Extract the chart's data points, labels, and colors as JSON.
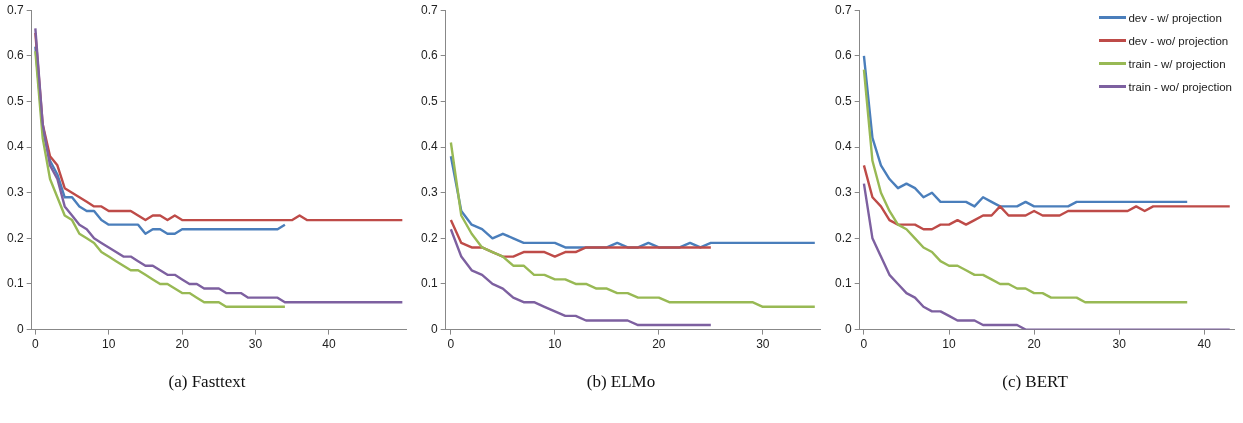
{
  "chart_data": [
    {
      "type": "line",
      "title": "(a) Fasttext",
      "x": [
        0,
        1,
        2,
        3,
        4,
        5,
        6,
        7,
        8,
        9,
        10,
        11,
        12,
        13,
        14,
        15,
        16,
        17,
        18,
        19,
        20,
        21,
        22,
        23,
        24,
        25,
        26,
        27,
        28,
        29,
        30,
        31,
        32,
        33,
        34,
        35,
        36,
        37,
        38,
        39,
        40,
        41,
        42,
        43,
        44,
        45,
        46,
        47,
        48,
        49,
        50
      ],
      "xlim": [
        -0.5,
        50.5
      ],
      "xticks": [
        0,
        10,
        20,
        30,
        40
      ],
      "ylim": [
        0,
        0.7
      ],
      "yticks": [
        0,
        0.1,
        0.2,
        0.3,
        0.4,
        0.5,
        0.6,
        0.7
      ],
      "grid": false,
      "legend": false,
      "series": [
        {
          "color": "#4a7ebb",
          "values": [
            0.62,
            0.44,
            0.37,
            0.34,
            0.29,
            0.29,
            0.27,
            0.26,
            0.26,
            0.24,
            0.23,
            0.23,
            0.23,
            0.23,
            0.23,
            0.21,
            0.22,
            0.22,
            0.21,
            0.21,
            0.22,
            0.22,
            0.22,
            0.22,
            0.22,
            0.22,
            0.22,
            0.22,
            0.22,
            0.22,
            0.22,
            0.22,
            0.22,
            0.22,
            0.23,
            null,
            null,
            null,
            null,
            null,
            null,
            null,
            null,
            null,
            null,
            null,
            null,
            null,
            null,
            null,
            null
          ]
        },
        {
          "color": "#be4b48",
          "values": [
            0.65,
            0.45,
            0.38,
            0.36,
            0.31,
            0.3,
            0.29,
            0.28,
            0.27,
            0.27,
            0.26,
            0.26,
            0.26,
            0.26,
            0.25,
            0.24,
            0.25,
            0.25,
            0.24,
            0.25,
            0.24,
            0.24,
            0.24,
            0.24,
            0.24,
            0.24,
            0.24,
            0.24,
            0.24,
            0.24,
            0.24,
            0.24,
            0.24,
            0.24,
            0.24,
            0.24,
            0.25,
            0.24,
            0.24,
            0.24,
            0.24,
            0.24,
            0.24,
            0.24,
            0.24,
            0.24,
            0.24,
            0.24,
            0.24,
            0.24,
            0.24
          ]
        },
        {
          "color": "#98b954",
          "values": [
            0.61,
            0.42,
            0.33,
            0.29,
            0.25,
            0.24,
            0.21,
            0.2,
            0.19,
            0.17,
            0.16,
            0.15,
            0.14,
            0.13,
            0.13,
            0.12,
            0.11,
            0.1,
            0.1,
            0.09,
            0.08,
            0.08,
            0.07,
            0.06,
            0.06,
            0.06,
            0.05,
            0.05,
            0.05,
            0.05,
            0.05,
            0.05,
            0.05,
            0.05,
            0.05,
            null,
            null,
            null,
            null,
            null,
            null,
            null,
            null,
            null,
            null,
            null,
            null,
            null,
            null,
            null,
            null
          ]
        },
        {
          "color": "#7d60a0",
          "values": [
            0.66,
            0.45,
            0.36,
            0.33,
            0.27,
            0.25,
            0.23,
            0.22,
            0.2,
            0.19,
            0.18,
            0.17,
            0.16,
            0.16,
            0.15,
            0.14,
            0.14,
            0.13,
            0.12,
            0.12,
            0.11,
            0.1,
            0.1,
            0.09,
            0.09,
            0.09,
            0.08,
            0.08,
            0.08,
            0.07,
            0.07,
            0.07,
            0.07,
            0.07,
            0.06,
            0.06,
            0.06,
            0.06,
            0.06,
            0.06,
            0.06,
            0.06,
            0.06,
            0.06,
            0.06,
            0.06,
            0.06,
            0.06,
            0.06,
            0.06,
            0.06
          ]
        }
      ]
    },
    {
      "type": "line",
      "title": "(b) ELMo",
      "x": [
        0,
        1,
        2,
        3,
        4,
        5,
        6,
        7,
        8,
        9,
        10,
        11,
        12,
        13,
        14,
        15,
        16,
        17,
        18,
        19,
        20,
        21,
        22,
        23,
        24,
        25,
        26,
        27,
        28,
        29,
        30,
        31,
        32,
        33,
        34,
        35
      ],
      "xlim": [
        -0.5,
        35.5
      ],
      "xticks": [
        0,
        10,
        20,
        30
      ],
      "ylim": [
        0,
        0.7
      ],
      "yticks": [
        0,
        0.1,
        0.2,
        0.3,
        0.4,
        0.5,
        0.6,
        0.7
      ],
      "grid": false,
      "legend": false,
      "series": [
        {
          "color": "#4a7ebb",
          "values": [
            0.38,
            0.26,
            0.23,
            0.22,
            0.2,
            0.21,
            0.2,
            0.19,
            0.19,
            0.19,
            0.19,
            0.18,
            0.18,
            0.18,
            0.18,
            0.18,
            0.19,
            0.18,
            0.18,
            0.19,
            0.18,
            0.18,
            0.18,
            0.19,
            0.18,
            0.19,
            0.19,
            0.19,
            0.19,
            0.19,
            0.19,
            0.19,
            0.19,
            0.19,
            0.19,
            0.19
          ]
        },
        {
          "color": "#be4b48",
          "values": [
            0.24,
            0.19,
            0.18,
            0.18,
            0.17,
            0.16,
            0.16,
            0.17,
            0.17,
            0.17,
            0.16,
            0.17,
            0.17,
            0.18,
            0.18,
            0.18,
            0.18,
            0.18,
            0.18,
            0.18,
            0.18,
            0.18,
            0.18,
            0.18,
            0.18,
            0.18,
            null,
            null,
            null,
            null,
            null,
            null,
            null,
            null,
            null,
            null
          ]
        },
        {
          "color": "#98b954",
          "values": [
            0.41,
            0.25,
            0.21,
            0.18,
            0.17,
            0.16,
            0.14,
            0.14,
            0.12,
            0.12,
            0.11,
            0.11,
            0.1,
            0.1,
            0.09,
            0.09,
            0.08,
            0.08,
            0.07,
            0.07,
            0.07,
            0.06,
            0.06,
            0.06,
            0.06,
            0.06,
            0.06,
            0.06,
            0.06,
            0.06,
            0.05,
            0.05,
            0.05,
            0.05,
            0.05,
            0.05
          ]
        },
        {
          "color": "#7d60a0",
          "values": [
            0.22,
            0.16,
            0.13,
            0.12,
            0.1,
            0.09,
            0.07,
            0.06,
            0.06,
            0.05,
            0.04,
            0.03,
            0.03,
            0.02,
            0.02,
            0.02,
            0.02,
            0.02,
            0.01,
            0.01,
            0.01,
            0.01,
            0.01,
            0.01,
            0.01,
            0.01,
            null,
            null,
            null,
            null,
            null,
            null,
            null,
            null,
            null,
            null
          ]
        }
      ]
    },
    {
      "type": "line",
      "title": "(c) BERT",
      "x": [
        0,
        1,
        2,
        3,
        4,
        5,
        6,
        7,
        8,
        9,
        10,
        11,
        12,
        13,
        14,
        15,
        16,
        17,
        18,
        19,
        20,
        21,
        22,
        23,
        24,
        25,
        26,
        27,
        28,
        29,
        30,
        31,
        32,
        33,
        34,
        35,
        36,
        37,
        38,
        39,
        40,
        41,
        42,
        43
      ],
      "xlim": [
        -0.5,
        43.5
      ],
      "xticks": [
        0,
        10,
        20,
        30,
        40
      ],
      "ylim": [
        0,
        0.7
      ],
      "yticks": [
        0,
        0.1,
        0.2,
        0.3,
        0.4,
        0.5,
        0.6,
        0.7
      ],
      "grid": false,
      "legend": "top right",
      "series": [
        {
          "name": "dev - w/ projection",
          "color": "#4a7ebb",
          "values": [
            0.6,
            0.42,
            0.36,
            0.33,
            0.31,
            0.32,
            0.31,
            0.29,
            0.3,
            0.28,
            0.28,
            0.28,
            0.28,
            0.27,
            0.29,
            0.28,
            0.27,
            0.27,
            0.27,
            0.28,
            0.27,
            0.27,
            0.27,
            0.27,
            0.27,
            0.28,
            0.28,
            0.28,
            0.28,
            0.28,
            0.28,
            0.28,
            0.28,
            0.28,
            0.28,
            0.28,
            0.28,
            0.28,
            0.28,
            null,
            null,
            null,
            null,
            null
          ]
        },
        {
          "name": "dev - wo/ projection",
          "color": "#be4b48",
          "values": [
            0.36,
            0.29,
            0.27,
            0.24,
            0.23,
            0.23,
            0.23,
            0.22,
            0.22,
            0.23,
            0.23,
            0.24,
            0.23,
            0.24,
            0.25,
            0.25,
            0.27,
            0.25,
            0.25,
            0.25,
            0.26,
            0.25,
            0.25,
            0.25,
            0.26,
            0.26,
            0.26,
            0.26,
            0.26,
            0.26,
            0.26,
            0.26,
            0.27,
            0.26,
            0.27,
            0.27,
            0.27,
            0.27,
            0.27,
            0.27,
            0.27,
            0.27,
            0.27,
            0.27
          ]
        },
        {
          "name": "train - w/ projection",
          "color": "#98b954",
          "values": [
            0.57,
            0.37,
            0.3,
            0.26,
            0.23,
            0.22,
            0.2,
            0.18,
            0.17,
            0.15,
            0.14,
            0.14,
            0.13,
            0.12,
            0.12,
            0.11,
            0.1,
            0.1,
            0.09,
            0.09,
            0.08,
            0.08,
            0.07,
            0.07,
            0.07,
            0.07,
            0.06,
            0.06,
            0.06,
            0.06,
            0.06,
            0.06,
            0.06,
            0.06,
            0.06,
            0.06,
            0.06,
            0.06,
            0.06,
            null,
            null,
            null,
            null,
            null
          ]
        },
        {
          "name": "train - wo/ projection",
          "color": "#7d60a0",
          "values": [
            0.32,
            0.2,
            0.16,
            0.12,
            0.1,
            0.08,
            0.07,
            0.05,
            0.04,
            0.04,
            0.03,
            0.02,
            0.02,
            0.02,
            0.01,
            0.01,
            0.01,
            0.01,
            0.01,
            0,
            0,
            0,
            0,
            0,
            0,
            0,
            0,
            0,
            0,
            0,
            0,
            0,
            0,
            0,
            0,
            0,
            0,
            0,
            0,
            0,
            0,
            0,
            0,
            0
          ]
        }
      ]
    }
  ]
}
